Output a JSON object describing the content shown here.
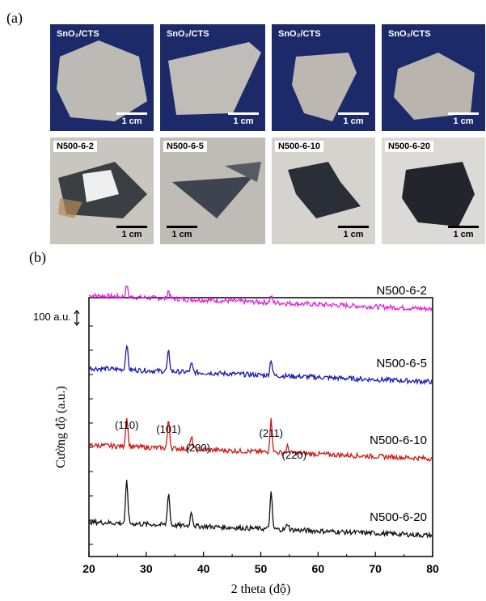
{
  "panel_a_label": "(a)",
  "panel_b_label": "(b)",
  "photos_top": [
    {
      "tag": "SnO₂/CTS",
      "scale": "1 cm"
    },
    {
      "tag": "SnO₂/CTS",
      "scale": "1 cm"
    },
    {
      "tag": "SnO₂/CTS",
      "scale": "1 cm"
    },
    {
      "tag": "SnO₂/CTS",
      "scale": "1 cm"
    }
  ],
  "photos_bottom": [
    {
      "tag": "N500-6-2",
      "scale": "1 cm"
    },
    {
      "tag": "N500-6-5",
      "scale": "1 cm"
    },
    {
      "tag": "N500-6-10",
      "scale": "1 cm"
    },
    {
      "tag": "N500-6-20",
      "scale": "1 cm"
    }
  ],
  "colors": {
    "navy": "#1a2a6c",
    "magenta": "#e020e0",
    "blue": "#1a1ab0",
    "red": "#d01818",
    "black": "#111111"
  },
  "chart_data": {
    "type": "line",
    "xlabel": "2 theta (độ)",
    "ylabel": "Cường độ (a.u.)",
    "xlim": [
      20,
      80
    ],
    "xticks": [
      20,
      30,
      40,
      50,
      60,
      70,
      80
    ],
    "scale_bar_label": "100 a.u.",
    "grid": false,
    "series": [
      {
        "name": "N500-6-2",
        "color": "#e020e0",
        "baseline": 280,
        "peaks": [
          [
            26.6,
            14
          ],
          [
            33.9,
            10
          ],
          [
            51.8,
            8
          ]
        ]
      },
      {
        "name": "N500-6-5",
        "color": "#1a1ab0",
        "baseline": 190,
        "peaks": [
          [
            26.6,
            32
          ],
          [
            33.9,
            24
          ],
          [
            37.9,
            10
          ],
          [
            51.8,
            20
          ]
        ]
      },
      {
        "name": "N500-6-10",
        "color": "#d01818",
        "baseline": 95,
        "peaks": [
          [
            26.6,
            38
          ],
          [
            33.9,
            34
          ],
          [
            37.9,
            14
          ],
          [
            51.8,
            40
          ],
          [
            54.7,
            8
          ]
        ]
      },
      {
        "name": "N500-6-20",
        "color": "#111111",
        "baseline": 0,
        "peaks": [
          [
            26.6,
            52
          ],
          [
            33.9,
            40
          ],
          [
            37.9,
            18
          ],
          [
            51.8,
            44
          ],
          [
            54.7,
            8
          ]
        ]
      }
    ],
    "annotations": [
      {
        "text": "(110)",
        "x": 26.6
      },
      {
        "text": "(101)",
        "x": 33.9
      },
      {
        "text": "(200)",
        "x": 37.9
      },
      {
        "text": "(211)",
        "x": 51.8
      },
      {
        "text": "(220)",
        "x": 54.7
      }
    ]
  }
}
